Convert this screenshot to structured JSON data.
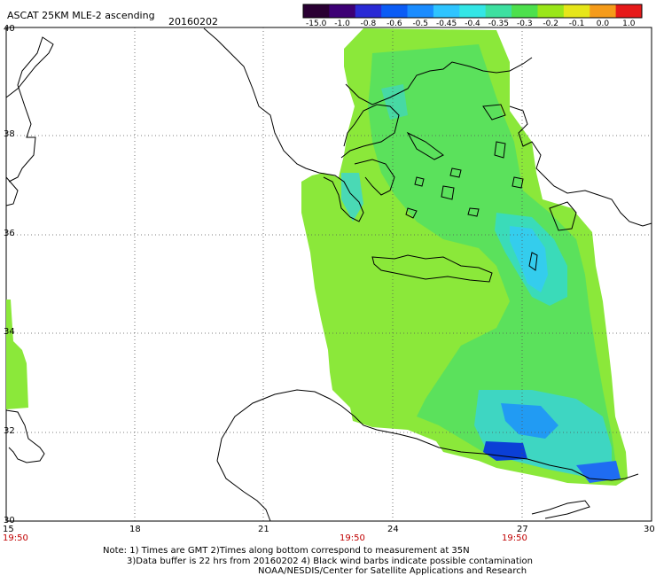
{
  "header": {
    "title": "ASCAT 25KM MLE-2 ascending",
    "date": "20160202"
  },
  "colorbar": {
    "labels": [
      "-15.0",
      "-1.0",
      "-0.8",
      "-0.6",
      "-0.5",
      "-0.45",
      "-0.4",
      "-0.35",
      "-0.3",
      "-0.2",
      "-0.1",
      "0.0",
      "1.0"
    ],
    "colors": [
      "#2a0033",
      "#3d0075",
      "#2a2ad5",
      "#0b5cf5",
      "#1a8cff",
      "#2ec4ff",
      "#33e6e6",
      "#3de0a0",
      "#4de04d",
      "#9ae619",
      "#e6e619",
      "#f59b1a",
      "#e61a1a"
    ]
  },
  "map": {
    "lat_labels": [
      "40",
      "38",
      "36",
      "34",
      "32",
      "30"
    ],
    "lon_labels": [
      "15",
      "18",
      "21",
      "24",
      "27",
      "30"
    ],
    "time_labels": [
      "19:50",
      "19:50",
      "19:50"
    ],
    "land_color": "#ffffff",
    "coast_color": "#000000",
    "grid_color": "#555555"
  },
  "notes": {
    "line1": "Note: 1) Times are GMT 2)Times along bottom correspond to measurement at 35N",
    "line2": "3)Data buffer is 22 hrs from 20160202 4) Black wind barbs indicate possible contamination",
    "line3": "NOAA/NESDIS/Center for Satellite Applications and Research"
  }
}
